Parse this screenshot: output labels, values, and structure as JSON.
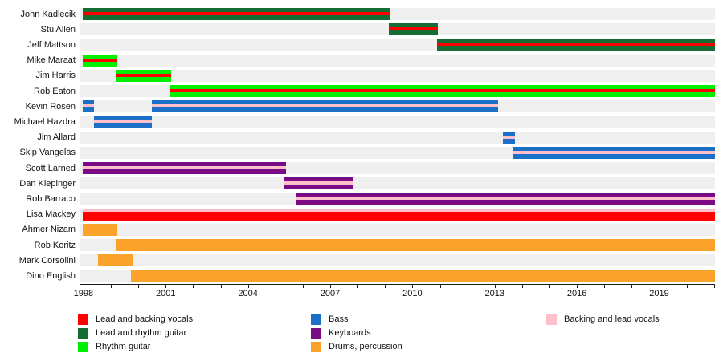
{
  "chart_data": {
    "type": "timeline",
    "title": "",
    "axis": {
      "start": 1997.9,
      "end": 2021.05,
      "minor_tick_years_from": 1998,
      "minor_tick_years_to": 2021,
      "major_tick_years": [
        1998,
        2001,
        2004,
        2007,
        2010,
        2013,
        2016,
        2019
      ],
      "grid": "off",
      "track_color": "#efefef"
    },
    "colors": {
      "lead_backing_vocals": "#fe0000",
      "lead_rhythm_guitar": "#146e34",
      "rhythm_guitar": "#00ee00",
      "bass": "#1a6fc7",
      "keyboards": "#7b0a85",
      "drums_percussion": "#fba22a",
      "backing_lead_vocals": "#ffc0cb"
    },
    "members": [
      {
        "name": "John Kadlecik",
        "bar_color": "lead_rhythm_guitar",
        "stripe_color": "lead_backing_vocals",
        "stripe_pos": "center",
        "segments": [
          [
            1998.0,
            2009.2
          ]
        ]
      },
      {
        "name": "Stu Allen",
        "bar_color": "lead_rhythm_guitar",
        "stripe_color": "lead_backing_vocals",
        "stripe_pos": "center",
        "segments": [
          [
            2009.15,
            2010.95
          ]
        ]
      },
      {
        "name": "Jeff Mattson",
        "bar_color": "lead_rhythm_guitar",
        "stripe_color": "lead_backing_vocals",
        "stripe_pos": "center",
        "segments": [
          [
            2010.9,
            2021.05
          ]
        ]
      },
      {
        "name": "Mike Maraat",
        "bar_color": "rhythm_guitar",
        "stripe_color": "lead_backing_vocals",
        "stripe_pos": "center",
        "segments": [
          [
            1998.0,
            1999.25
          ]
        ]
      },
      {
        "name": "Jim Harris",
        "bar_color": "rhythm_guitar",
        "stripe_color": "lead_backing_vocals",
        "stripe_pos": "center",
        "segments": [
          [
            1999.2,
            2001.2
          ]
        ]
      },
      {
        "name": "Rob Eaton",
        "bar_color": "rhythm_guitar",
        "stripe_color": "lead_backing_vocals",
        "stripe_pos": "center",
        "segments": [
          [
            2001.15,
            2021.05
          ]
        ]
      },
      {
        "name": "Kevin Rosen",
        "bar_color": "bass",
        "stripe_color": "backing_lead_vocals",
        "stripe_pos": "center",
        "segments": [
          [
            1998.0,
            1998.4
          ],
          [
            2000.5,
            2013.15
          ]
        ]
      },
      {
        "name": "Michael Hazdra",
        "bar_color": "bass",
        "stripe_color": "backing_lead_vocals",
        "stripe_pos": "center",
        "segments": [
          [
            1998.4,
            2000.5
          ]
        ]
      },
      {
        "name": "Jim Allard",
        "bar_color": "bass",
        "stripe_color": "backing_lead_vocals",
        "stripe_pos": "center",
        "segments": [
          [
            2013.3,
            2013.75
          ]
        ]
      },
      {
        "name": "Skip Vangelas",
        "bar_color": "bass",
        "stripe_color": "backing_lead_vocals",
        "stripe_pos": "center",
        "segments": [
          [
            2013.7,
            2021.05
          ]
        ]
      },
      {
        "name": "Scott Larned",
        "bar_color": "keyboards",
        "stripe_color": "backing_lead_vocals",
        "stripe_pos": "center",
        "segments": [
          [
            1998.0,
            2005.4
          ]
        ]
      },
      {
        "name": "Dan Klepinger",
        "bar_color": "keyboards",
        "stripe_color": "backing_lead_vocals",
        "stripe_pos": "center",
        "segments": [
          [
            2005.35,
            2007.85
          ]
        ]
      },
      {
        "name": "Rob Barraco",
        "bar_color": "keyboards",
        "stripe_color": "backing_lead_vocals",
        "stripe_pos": "center",
        "segments": [
          [
            2005.75,
            2021.05
          ]
        ]
      },
      {
        "name": "Lisa Mackey",
        "bar_color": "lead_backing_vocals",
        "stripe_color": "backing_lead_vocals",
        "stripe_pos": "top",
        "segments": [
          [
            1998.0,
            2021.05
          ]
        ]
      },
      {
        "name": "Ahmer Nizam",
        "bar_color": "drums_percussion",
        "stripe_color": null,
        "stripe_pos": null,
        "segments": [
          [
            1998.0,
            1999.25
          ]
        ]
      },
      {
        "name": "Rob Koritz",
        "bar_color": "drums_percussion",
        "stripe_color": null,
        "stripe_pos": null,
        "segments": [
          [
            1999.2,
            2021.05
          ]
        ]
      },
      {
        "name": "Mark Corsolini",
        "bar_color": "drums_percussion",
        "stripe_color": null,
        "stripe_pos": null,
        "segments": [
          [
            1998.55,
            1999.8
          ]
        ]
      },
      {
        "name": "Dino English",
        "bar_color": "drums_percussion",
        "stripe_color": null,
        "stripe_pos": null,
        "segments": [
          [
            1999.75,
            2021.05
          ]
        ]
      }
    ],
    "legend": {
      "columns": [
        {
          "items": [
            {
              "label": "Lead and backing vocals",
              "color": "lead_backing_vocals"
            },
            {
              "label": "Lead and rhythm guitar",
              "color": "lead_rhythm_guitar"
            },
            {
              "label": "Rhythm guitar",
              "color": "rhythm_guitar"
            }
          ]
        },
        {
          "items": [
            {
              "label": "Bass",
              "color": "bass"
            },
            {
              "label": "Keyboards",
              "color": "keyboards"
            },
            {
              "label": "Drums, percussion",
              "color": "drums_percussion"
            }
          ]
        },
        {
          "items": [
            {
              "label": "Backing and lead vocals",
              "color": "backing_lead_vocals"
            }
          ]
        }
      ]
    }
  }
}
